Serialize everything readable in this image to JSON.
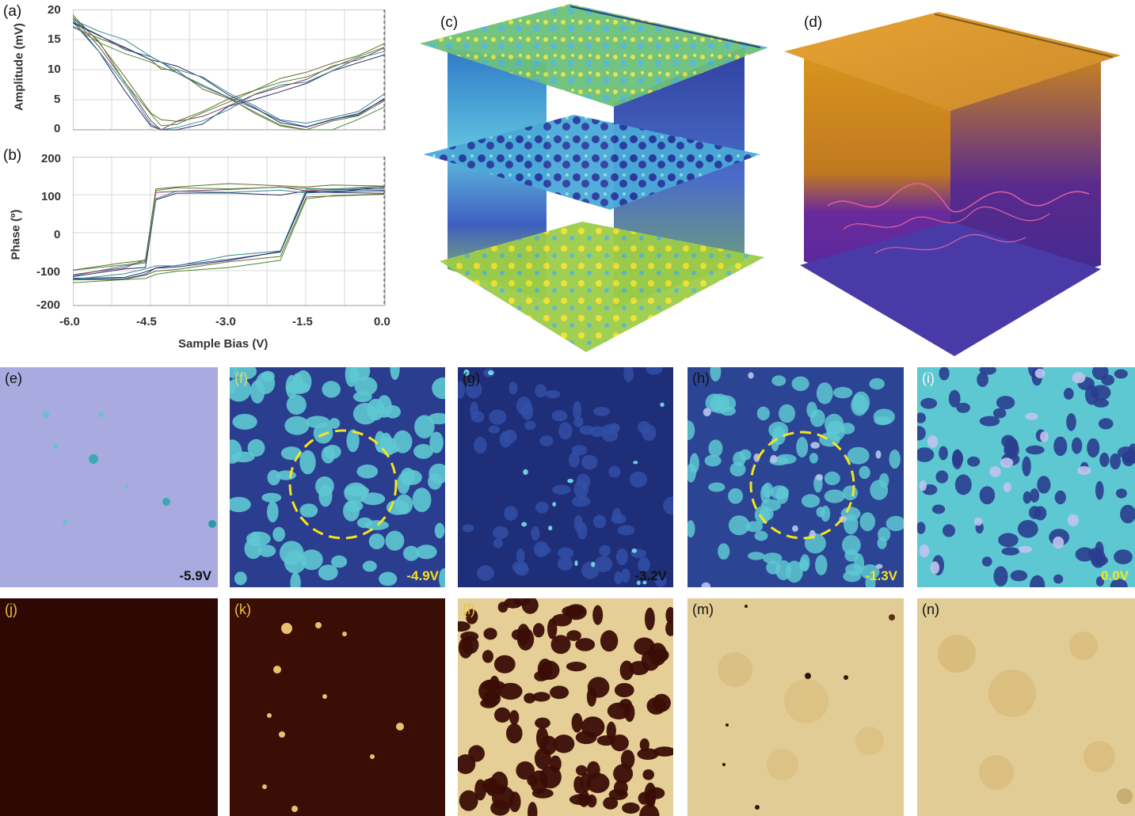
{
  "panels": {
    "a": "(a)",
    "b": "(b)",
    "c": "(c)",
    "d": "(d)",
    "e": "(e)",
    "f": "(f)",
    "g": "(g)",
    "h": "(h)",
    "i": "(i)",
    "j": "(j)",
    "k": "(k)",
    "l": "(l)",
    "m": "(m)",
    "n": "(n)"
  },
  "bias_labels": {
    "e": "-5.9V",
    "f": "-4.9V",
    "g": "-3.2V",
    "h": "-1.3V",
    "i": "0.0V"
  },
  "colors": {
    "blue_map": "#3a5fb0",
    "teal": "#5fd0d8",
    "lavender": "#a9abe0",
    "copper": "#3a0d05",
    "gold": "#e8c98a",
    "dashed_circle": "#f5e51c"
  },
  "chart_data": [
    {
      "type": "line",
      "panel": "(a)",
      "xlabel": "",
      "ylabel": "Amplitude (mV)",
      "xlim": [
        -6.0,
        0.0
      ],
      "ylim": [
        0,
        20
      ],
      "yticks": [
        "0",
        "5",
        "10",
        "15",
        "20"
      ],
      "grid": true,
      "x": [
        -6.0,
        -5.5,
        -5.0,
        -4.5,
        -4.3,
        -4.0,
        -3.5,
        -3.0,
        -2.5,
        -2.0,
        -1.5,
        -1.0,
        -0.5,
        0.0
      ],
      "series": [
        {
          "values": [
            19,
            14,
            8,
            2,
            0.5,
            1,
            2.5,
            4.5,
            6,
            7.5,
            9,
            10.5,
            12,
            14
          ]
        },
        {
          "values": [
            18,
            16,
            14,
            12,
            11,
            10,
            8,
            6,
            3.5,
            1.5,
            0.5,
            1.5,
            3,
            5
          ]
        }
      ]
    },
    {
      "type": "line",
      "panel": "(b)",
      "xlabel": "Sample Bias (V)",
      "ylabel": "Phase (º)",
      "xlim": [
        -6.0,
        0.0
      ],
      "ylim": [
        -200,
        200
      ],
      "xticks": [
        "-6.0",
        "-4.5",
        "-3.0",
        "-1.5",
        "0.0"
      ],
      "yticks": [
        "-200",
        "-100",
        "0",
        "100",
        "200"
      ],
      "grid": true,
      "x": [
        -6.0,
        -5.0,
        -4.6,
        -4.4,
        -4.0,
        -3.0,
        -2.0,
        -1.5,
        -1.0,
        0.0
      ],
      "series": [
        {
          "values": [
            -110,
            -90,
            -80,
            100,
            115,
            115,
            115,
            115,
            115,
            115
          ]
        },
        {
          "values": [
            -130,
            -120,
            -110,
            -100,
            -95,
            -80,
            -60,
            100,
            105,
            110
          ]
        }
      ]
    }
  ]
}
